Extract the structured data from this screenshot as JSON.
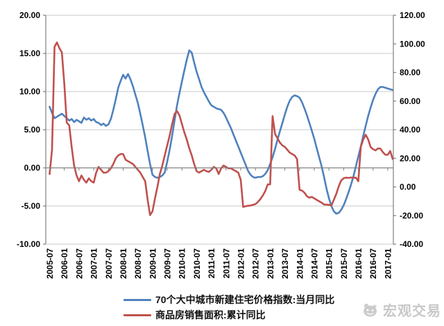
{
  "watermark": {
    "text": "宏观交易"
  },
  "chart_data": {
    "type": "line",
    "title": "",
    "grid": true,
    "legend_position": "bottom",
    "x_start_month": "2005-07",
    "x_end_month": "2017-03",
    "x_frequency": "monthly",
    "x_tick_step_months": 6,
    "x_labels": [
      "2005-07",
      "2006-01",
      "2006-07",
      "2007-01",
      "2007-07",
      "2008-01",
      "2008-07",
      "2009-01",
      "2009-07",
      "2010-01",
      "2010-07",
      "2011-01",
      "2011-07",
      "2012-01",
      "2012-07",
      "2013-01",
      "2013-07",
      "2014-01",
      "2014-07",
      "2015-01",
      "2015-07",
      "2016-01",
      "2016-07",
      "2017-01"
    ],
    "left_axis": {
      "min": -10,
      "max": 20,
      "ticks": [
        20,
        15,
        10,
        5,
        0,
        -5,
        -10
      ],
      "format_decimals": 2
    },
    "right_axis": {
      "min": -40,
      "max": 120,
      "ticks": [
        120,
        100,
        80,
        60,
        40,
        20,
        0,
        -20,
        -40
      ],
      "format_decimals": 2
    },
    "colors": {
      "gridline": "#c9c9c9",
      "axis": "#7f7f7f",
      "tick_text": "#000000"
    },
    "series": [
      {
        "name": "70个大中城市新建住宅价格指数:当月同比",
        "axis": "left",
        "color": "#4F81BD",
        "values": [
          8.0,
          7.2,
          6.5,
          6.7,
          6.9,
          7.1,
          6.8,
          6.5,
          6.2,
          6.4,
          6.0,
          6.3,
          6.1,
          5.9,
          6.6,
          6.3,
          6.5,
          6.2,
          6.4,
          6.0,
          5.9,
          5.6,
          5.8,
          5.5,
          5.7,
          6.4,
          7.6,
          9.0,
          10.5,
          11.4,
          12.2,
          11.7,
          12.3,
          11.6,
          10.7,
          9.6,
          8.5,
          7.1,
          5.6,
          4.0,
          2.2,
          0.5,
          -0.9,
          -1.2,
          -1.3,
          -1.2,
          -1.0,
          -0.6,
          0.8,
          2.4,
          4.2,
          6.2,
          8.2,
          9.8,
          11.3,
          12.8,
          14.2,
          15.4,
          15.1,
          13.8,
          12.6,
          11.6,
          10.6,
          9.9,
          9.3,
          8.7,
          8.2,
          8.0,
          7.8,
          7.7,
          7.6,
          7.2,
          6.6,
          5.9,
          5.2,
          4.4,
          3.6,
          2.8,
          2.0,
          1.2,
          0.4,
          -0.4,
          -0.9,
          -1.2,
          -1.3,
          -1.2,
          -1.2,
          -1.1,
          -0.8,
          -0.3,
          0.5,
          1.4,
          2.5,
          3.7,
          4.8,
          5.9,
          7.0,
          8.0,
          8.8,
          9.3,
          9.5,
          9.4,
          9.2,
          8.6,
          7.8,
          6.9,
          5.9,
          4.9,
          3.8,
          2.6,
          1.4,
          0.2,
          -1.2,
          -2.7,
          -4.0,
          -5.0,
          -5.7,
          -6.0,
          -5.9,
          -5.5,
          -4.9,
          -4.1,
          -3.2,
          -2.2,
          -1.1,
          0.2,
          1.5,
          2.8,
          4.2,
          5.5,
          6.8,
          7.9,
          8.9,
          9.7,
          10.3,
          10.6,
          10.6,
          10.5,
          10.4,
          10.3,
          10.2
        ]
      },
      {
        "name": "商品房销售面积:累计同比",
        "axis": "right",
        "color": "#C0504D",
        "values": [
          9,
          26,
          98,
          101,
          97,
          94,
          72,
          45,
          43,
          28,
          15,
          8,
          4,
          8,
          5,
          3,
          6,
          4,
          3,
          10,
          14,
          12,
          10,
          10,
          11,
          13,
          16,
          20,
          22,
          23,
          23,
          19,
          18,
          17,
          16,
          14,
          12,
          10,
          7,
          4,
          -9,
          -19.7,
          -17,
          -8,
          0,
          9,
          15,
          22,
          29,
          36,
          44,
          51,
          53,
          50,
          44,
          38,
          33,
          27,
          22,
          16,
          11,
          10,
          11,
          12,
          11,
          10.5,
          12,
          14,
          13,
          9,
          13,
          15,
          14,
          13,
          13,
          12,
          11,
          10,
          5,
          -14,
          -13.5,
          -13.2,
          -13,
          -12.5,
          -12,
          -10.5,
          -8.5,
          -6,
          -3,
          1.8,
          1.8,
          49.5,
          37,
          34,
          31,
          29,
          28,
          26,
          24,
          23,
          22,
          19.5,
          -2,
          -2.5,
          -4,
          -6.5,
          -7.5,
          -7,
          -8,
          -9,
          -10,
          -11,
          -12.3,
          -12.3,
          -12.5,
          -13,
          -9,
          -4.8,
          0.5,
          4.5,
          6.1,
          6.5,
          6.3,
          6.6,
          6.4,
          6.5,
          4,
          28.2,
          33.1,
          36.5,
          33.2,
          27.9,
          26.4,
          25.5,
          26.9,
          26.8,
          24.3,
          22.5,
          22.5,
          25.1,
          19.5
        ]
      }
    ]
  }
}
